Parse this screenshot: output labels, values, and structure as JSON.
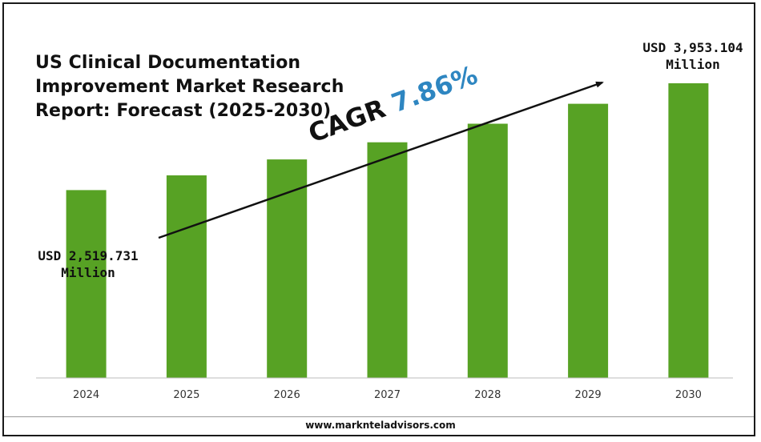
{
  "title_lines": [
    "US Clinical Documentation",
    "Improvement Market Research",
    "Report: Forecast (2025-2030)"
  ],
  "cagr": {
    "label": "CAGR",
    "value": "7.86%"
  },
  "start_label": {
    "line1": "USD 2,519.731",
    "line2": "Million"
  },
  "end_label": {
    "line1": "USD 3,953.104",
    "line2": "Million"
  },
  "footer": "www.marknteladvisors.com",
  "colors": {
    "bar": "#57a224",
    "cagr_value": "#2e86c1",
    "text": "#111111",
    "axis": "#bdbdbd"
  },
  "chart_data": {
    "type": "bar",
    "categories": [
      "2024",
      "2025",
      "2026",
      "2027",
      "2028",
      "2029",
      "2030"
    ],
    "values": [
      2519.731,
      2717.8,
      2931.4,
      3161.8,
      3410.3,
      3678.3,
      3953.104
    ],
    "unit": "USD Million",
    "ylim": [
      0,
      4200
    ],
    "grid": false,
    "legend": "none"
  }
}
